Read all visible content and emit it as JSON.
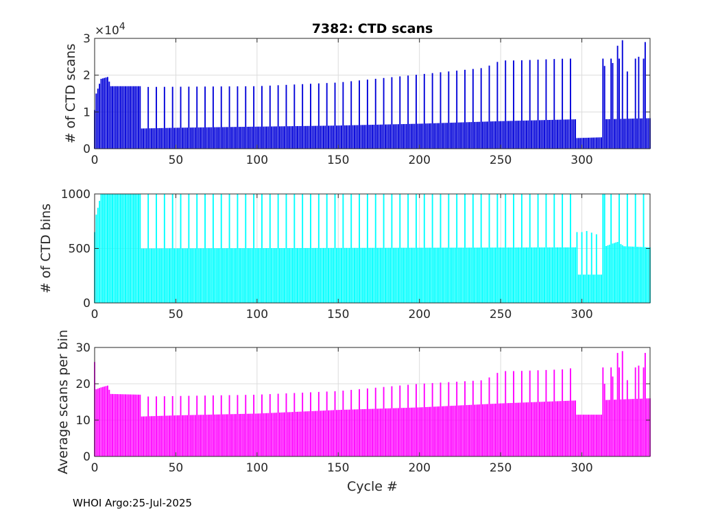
{
  "footer": "WHOI Argo:25-Jul-2025",
  "chart_data": [
    {
      "type": "bar",
      "title": "7382: CTD scans",
      "xlabel": "",
      "ylabel": "# of CTD scans",
      "exponent_label": "×10",
      "exponent_power": "4",
      "xlim": [
        0,
        342
      ],
      "ylim": [
        0,
        30000
      ],
      "xticks": [
        0,
        50,
        100,
        150,
        200,
        250,
        300
      ],
      "yticks": [
        0,
        10000,
        20000,
        30000
      ],
      "ytick_labels": [
        "0",
        "1",
        "2",
        "3"
      ],
      "color": "#0000d9",
      "baseline": {
        "points": [
          [
            0,
            10500
          ],
          [
            1,
            15000
          ],
          [
            4,
            19000
          ],
          [
            8,
            19500
          ],
          [
            10,
            17000
          ],
          [
            28,
            17000
          ],
          [
            29,
            5500
          ],
          [
            50,
            5700
          ],
          [
            100,
            6000
          ],
          [
            150,
            6300
          ],
          [
            200,
            6800
          ],
          [
            250,
            7500
          ],
          [
            296,
            8000
          ],
          [
            297,
            2900
          ],
          [
            312,
            3100
          ],
          [
            313,
            8000
          ],
          [
            342,
            8300
          ]
        ]
      },
      "spikes": {
        "start": 33,
        "step": 5,
        "end": 340,
        "points": [
          [
            33,
            16800
          ],
          [
            100,
            17000
          ],
          [
            150,
            18000
          ],
          [
            200,
            20200
          ],
          [
            240,
            22000
          ],
          [
            250,
            24000
          ],
          [
            260,
            24000
          ],
          [
            290,
            24500
          ],
          [
            296,
            24500
          ]
        ]
      },
      "special": [
        [
          0,
          10500
        ],
        [
          314,
          22500
        ],
        [
          319,
          23300
        ],
        [
          322,
          28000
        ],
        [
          325,
          29500
        ],
        [
          328,
          21000
        ],
        [
          335,
          25000
        ],
        [
          339,
          29000
        ]
      ]
    },
    {
      "type": "bar",
      "title": "",
      "xlabel": "",
      "ylabel": "# of CTD bins",
      "xlim": [
        0,
        342
      ],
      "ylim": [
        0,
        1000
      ],
      "xticks": [
        0,
        50,
        100,
        150,
        200,
        250,
        300
      ],
      "yticks": [
        0,
        500,
        1000
      ],
      "ytick_labels": [
        "0",
        "500",
        "1000"
      ],
      "color": "#00ffff",
      "baseline": {
        "points": [
          [
            0,
            650
          ],
          [
            1,
            810
          ],
          [
            4,
            1000
          ],
          [
            28,
            1000
          ],
          [
            29,
            500
          ],
          [
            296,
            510
          ],
          [
            297,
            260
          ],
          [
            312,
            260
          ],
          [
            313,
            510
          ],
          [
            318,
            540
          ],
          [
            322,
            560
          ],
          [
            326,
            520
          ],
          [
            342,
            510
          ]
        ]
      },
      "spikes": {
        "start": 33,
        "step": 5,
        "end": 340,
        "points": [
          [
            33,
            1000
          ],
          [
            340,
            1000
          ]
        ]
      },
      "special": [
        [
          297,
          650
        ],
        [
          300,
          650
        ],
        [
          303,
          660
        ],
        [
          306,
          645
        ],
        [
          309,
          630
        ],
        [
          314,
          1000
        ]
      ]
    },
    {
      "type": "bar",
      "title": "",
      "xlabel": "Cycle #",
      "ylabel": "Average scans per bin",
      "xlim": [
        0,
        342
      ],
      "ylim": [
        0,
        30
      ],
      "xticks": [
        0,
        50,
        100,
        150,
        200,
        250,
        300
      ],
      "yticks": [
        0,
        10,
        20,
        30
      ],
      "ytick_labels": [
        "0",
        "10",
        "20",
        "30"
      ],
      "color": "#ff00ff",
      "baseline": {
        "points": [
          [
            0,
            17000
          ],
          [
            1,
            18500
          ],
          [
            4,
            19000
          ],
          [
            8,
            19500
          ],
          [
            10,
            17200
          ],
          [
            28,
            17000
          ],
          [
            29,
            11000
          ],
          [
            50,
            11300
          ],
          [
            100,
            11800
          ],
          [
            150,
            12800
          ],
          [
            200,
            13500
          ],
          [
            250,
            14600
          ],
          [
            296,
            15400
          ],
          [
            297,
            11500
          ],
          [
            312,
            11500
          ],
          [
            313,
            15500
          ],
          [
            342,
            16000
          ]
        ]
      },
      "spikes": {
        "start": 33,
        "step": 5,
        "end": 340,
        "points": [
          [
            33,
            16500
          ],
          [
            100,
            17000
          ],
          [
            150,
            18000
          ],
          [
            200,
            20000
          ],
          [
            240,
            21000
          ],
          [
            250,
            23500
          ],
          [
            260,
            23500
          ],
          [
            290,
            24000
          ],
          [
            296,
            24500
          ]
        ]
      },
      "special": [
        [
          0,
          26000
        ],
        [
          314,
          20000
        ],
        [
          319,
          22000
        ],
        [
          322,
          28500
        ],
        [
          325,
          29000
        ],
        [
          328,
          21000
        ],
        [
          335,
          25000
        ],
        [
          339,
          28500
        ]
      ],
      "value_scale": 0.001
    }
  ]
}
